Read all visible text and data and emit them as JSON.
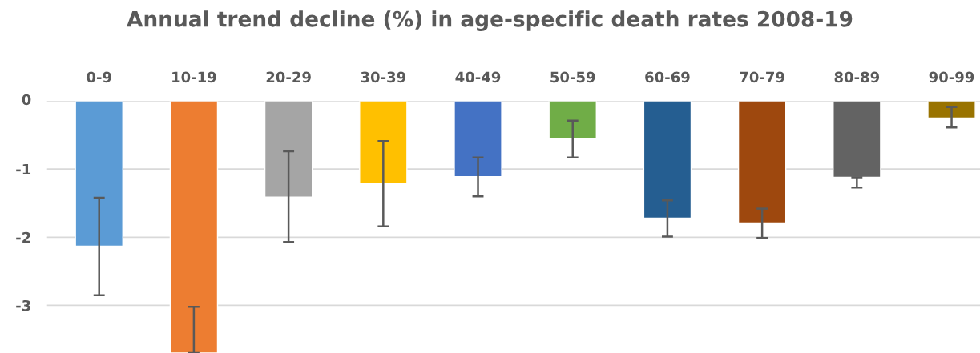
{
  "chart_data": {
    "type": "bar",
    "title": "Annual trend decline (%) in age-specific death rates 2008-19",
    "categories": [
      "0-9",
      "10-19",
      "20-29",
      "30-39",
      "40-49",
      "50-59",
      "60-69",
      "70-79",
      "80-89",
      "90-99"
    ],
    "values": [
      -2.13,
      -3.7,
      -1.41,
      -1.21,
      -1.11,
      -0.56,
      -1.72,
      -1.79,
      -1.12,
      -0.25
    ],
    "colors": [
      "#5b9bd5",
      "#ed7d31",
      "#a5a5a5",
      "#ffc000",
      "#4472c4",
      "#70ad47",
      "#255e91",
      "#9e480e",
      "#636363",
      "#997300"
    ],
    "errors": [
      [
        -2.85,
        -1.42
      ],
      [
        -3.7,
        -3.02
      ],
      [
        -2.07,
        -0.74
      ],
      [
        -1.84,
        -0.59
      ],
      [
        -1.4,
        -0.83
      ],
      [
        -0.83,
        -0.29
      ],
      [
        -1.99,
        -1.46
      ],
      [
        -2.01,
        -1.58
      ],
      [
        -1.27,
        -1.12
      ],
      [
        -0.39,
        -0.09
      ]
    ],
    "ylim": [
      -3.7,
      0
    ],
    "yticks": [
      0,
      -1,
      -2,
      -3
    ],
    "grid": "y"
  }
}
